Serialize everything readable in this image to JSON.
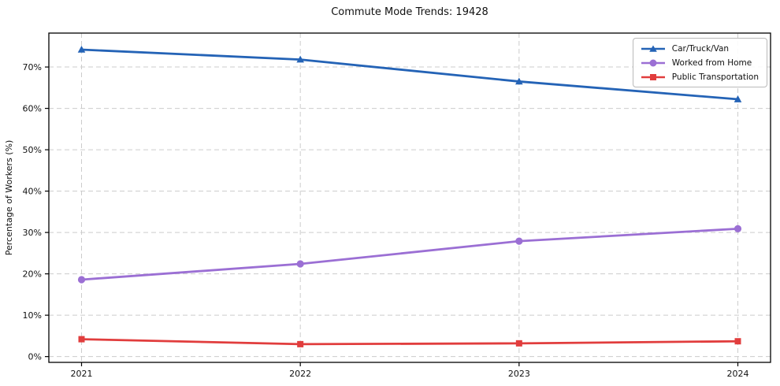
{
  "title": "Commute Mode Trends: 19428",
  "chart_data": {
    "type": "line",
    "title": "Commute Mode Trends: 19428",
    "xlabel": "",
    "ylabel": "Percentage of Workers (%)",
    "x": [
      2021,
      2022,
      2023,
      2024
    ],
    "series": [
      {
        "name": "Car/Truck/Van",
        "values": [
          74.2,
          71.8,
          66.5,
          62.2
        ],
        "color": "#2463b6",
        "marker": "triangle"
      },
      {
        "name": "Worked from Home",
        "values": [
          18.6,
          22.4,
          27.9,
          30.9
        ],
        "color": "#9b6fd4",
        "marker": "circle"
      },
      {
        "name": "Public Transportation",
        "values": [
          4.2,
          3.0,
          3.2,
          3.7
        ],
        "color": "#e13d3d",
        "marker": "square"
      }
    ],
    "ylim": [
      -1.4,
      78.2
    ],
    "yticks": [
      0,
      10,
      20,
      30,
      40,
      50,
      60,
      70
    ],
    "ytick_suffix": "%",
    "grid": true,
    "grid_color": "#cccccc",
    "axis_color": "#000000",
    "legend_position": "upper right"
  }
}
